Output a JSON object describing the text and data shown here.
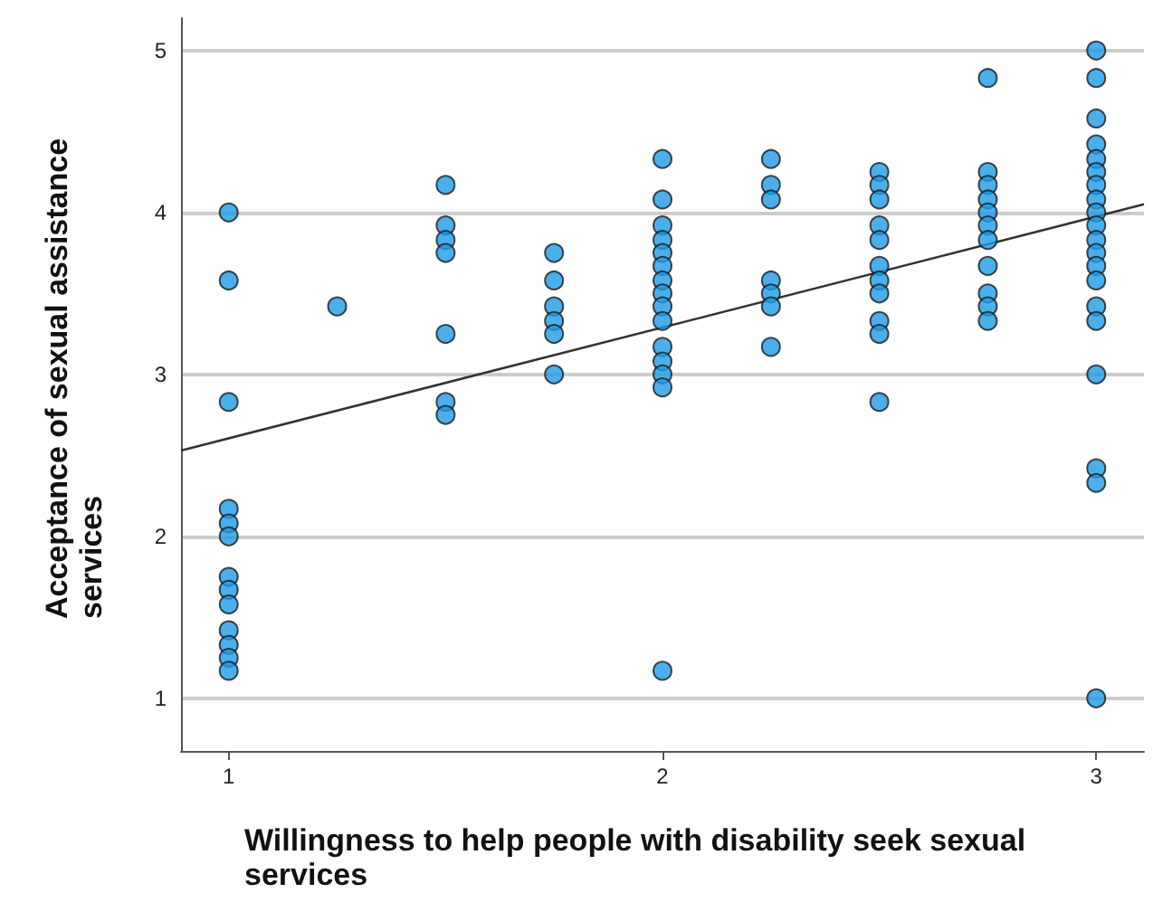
{
  "chart_data": {
    "type": "scatter",
    "xlabel": "Willingness to help people with disability seek sexual services",
    "ylabel": "Acceptance of sexual assistance services",
    "xlim": [
      0.89,
      3.11
    ],
    "xticks": [
      1,
      2,
      3
    ],
    "ylim": [
      0.675,
      5.2
    ],
    "yticks": [
      1,
      2,
      3,
      4,
      5
    ],
    "grid": "y",
    "marker": "circle",
    "series": [
      {
        "color": "#1e9be6",
        "x": [
          1,
          1,
          1,
          1,
          1,
          1,
          1,
          1,
          1,
          1,
          1,
          1,
          1,
          1.25,
          1.5,
          1.5,
          1.5,
          1.5,
          1.5,
          1.5,
          1.5,
          1.75,
          1.75,
          1.75,
          1.75,
          1.75,
          1.75,
          2,
          2,
          2,
          2,
          2,
          2,
          2,
          2,
          2,
          2,
          2,
          2,
          2,
          2,
          2,
          2.25,
          2.25,
          2.25,
          2.25,
          2.25,
          2.25,
          2.25,
          2.5,
          2.5,
          2.5,
          2.5,
          2.5,
          2.5,
          2.5,
          2.5,
          2.5,
          2.5,
          2.5,
          2.75,
          2.75,
          2.75,
          2.75,
          2.75,
          2.75,
          2.75,
          2.75,
          2.75,
          2.75,
          2.75,
          3,
          3,
          3,
          3,
          3,
          3,
          3,
          3,
          3,
          3,
          3,
          3,
          3,
          3,
          3,
          3,
          3,
          3,
          3,
          3
        ],
        "values": [
          4.0,
          3.58,
          2.83,
          2.17,
          2.08,
          2.0,
          1.75,
          1.67,
          1.58,
          1.42,
          1.33,
          1.25,
          1.17,
          3.42,
          4.17,
          3.92,
          3.83,
          3.75,
          3.25,
          2.83,
          2.75,
          3.75,
          3.58,
          3.42,
          3.33,
          3.25,
          3.0,
          4.33,
          4.08,
          3.92,
          3.83,
          3.75,
          3.67,
          3.58,
          3.5,
          3.42,
          3.33,
          3.17,
          3.08,
          3.0,
          2.92,
          1.17,
          4.33,
          4.17,
          4.08,
          3.58,
          3.5,
          3.42,
          3.17,
          4.25,
          4.17,
          4.08,
          3.92,
          3.83,
          3.67,
          3.58,
          3.5,
          3.33,
          3.25,
          2.83,
          4.83,
          4.25,
          4.17,
          4.08,
          4.0,
          3.92,
          3.83,
          3.67,
          3.5,
          3.42,
          3.33,
          5.0,
          4.83,
          4.58,
          4.42,
          4.33,
          4.25,
          4.17,
          4.08,
          4.0,
          3.92,
          3.83,
          3.75,
          3.67,
          3.58,
          3.42,
          3.33,
          3.0,
          2.42,
          2.33,
          1.0
        ]
      },
      {
        "type": "line",
        "color": "#333333",
        "marker": "none",
        "line_style": "solid",
        "x": [
          0.89,
          3.11
        ],
        "values": [
          2.53,
          4.05
        ]
      }
    ]
  }
}
